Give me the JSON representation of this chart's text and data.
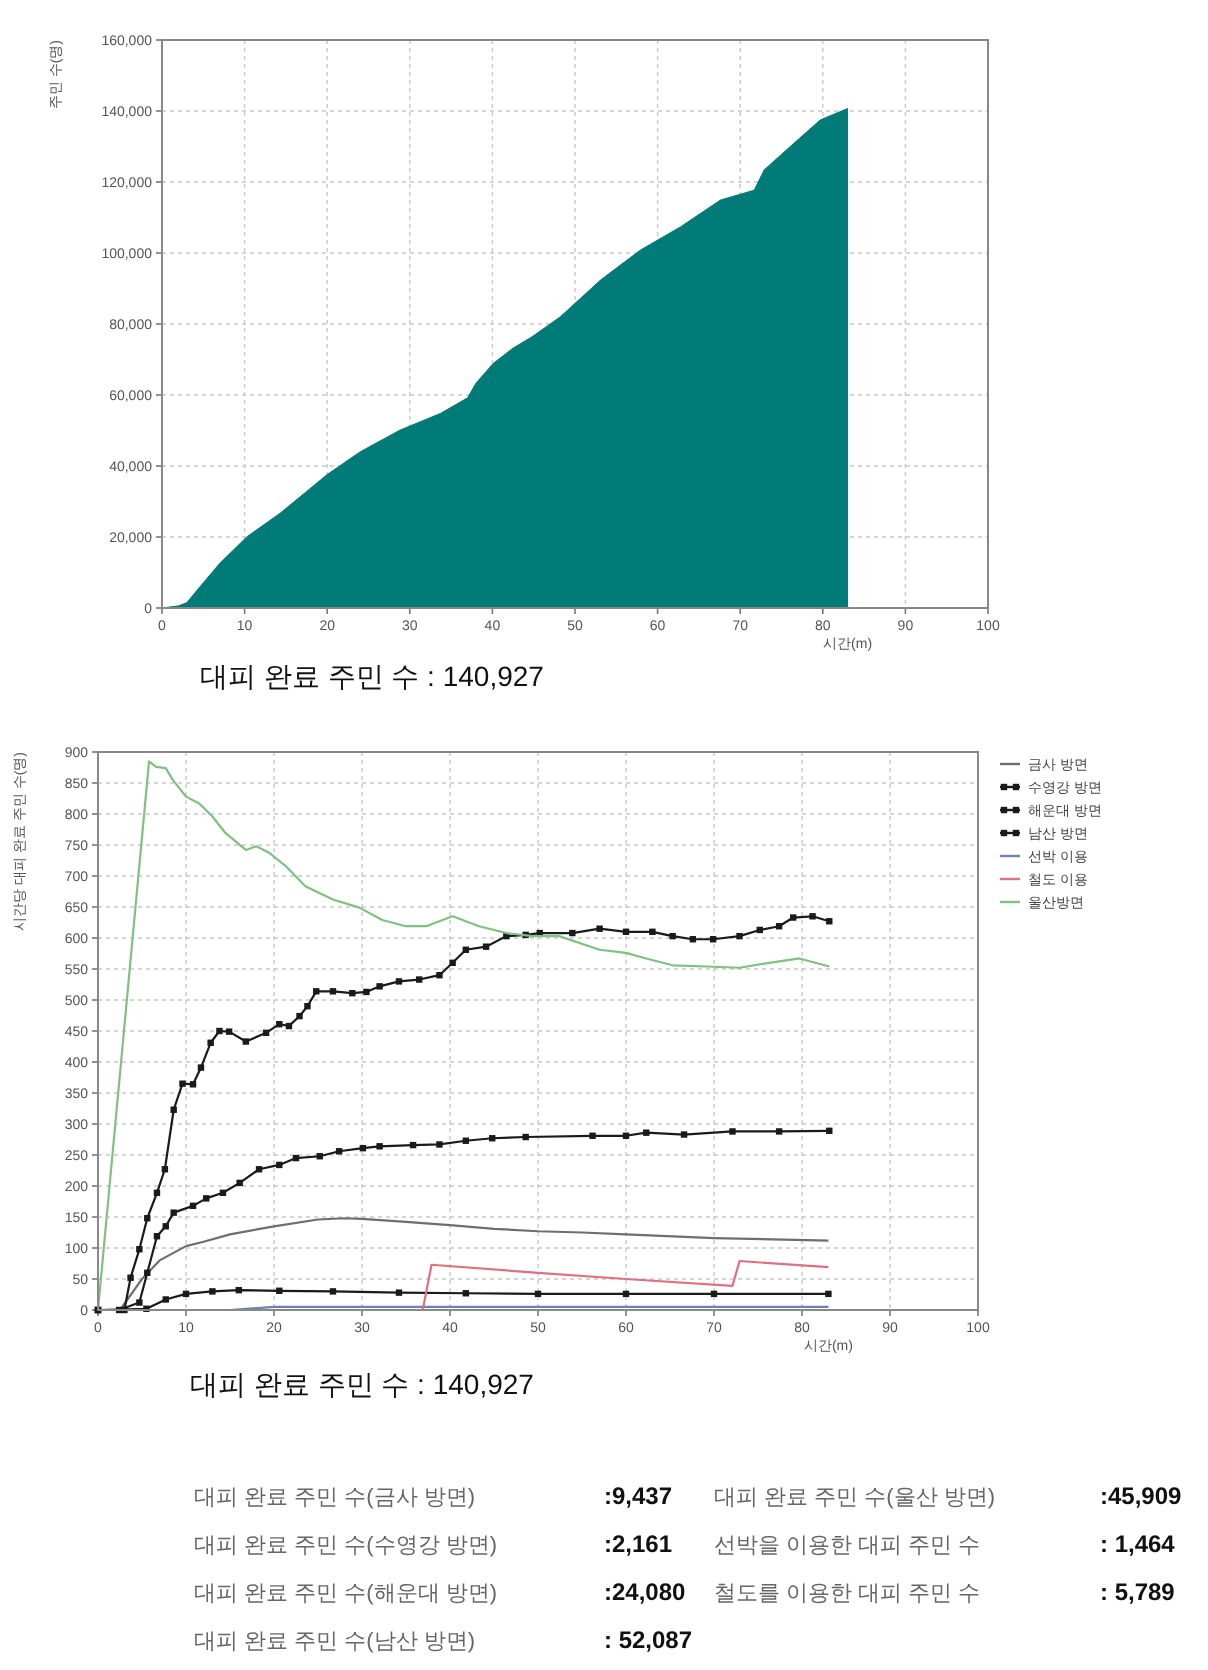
{
  "chart_data": [
    {
      "type": "area",
      "xlabel": "시간(m)",
      "ylabel": "주민 수(명)",
      "xlim": [
        0,
        100
      ],
      "ylim": [
        0,
        160000
      ],
      "xticks": [
        0,
        10,
        20,
        30,
        40,
        50,
        60,
        70,
        80,
        90,
        100
      ],
      "yticks": [
        0,
        {
          "value": 20000,
          "label": "20,000"
        },
        {
          "value": 40000,
          "label": "40,000"
        },
        {
          "value": 60000,
          "label": "60,000"
        },
        {
          "value": 80000,
          "label": "80,000"
        },
        {
          "value": 100000,
          "label": "100,000"
        },
        {
          "value": 120000,
          "label": "120,000"
        },
        {
          "value": 140000,
          "label": "140,000"
        },
        {
          "value": 160000,
          "label": "160,000"
        }
      ],
      "grid": true,
      "legend": false,
      "series": [
        {
          "color": "#007b78",
          "x": [
            0,
            2,
            3,
            4.6,
            7,
            10.3,
            14.3,
            20,
            24,
            28.8,
            33.7,
            37,
            38,
            40.1,
            42.5,
            44.8,
            48.2,
            53.1,
            57.9,
            62.8,
            67.6,
            71.7,
            72.9,
            76.5,
            79.7,
            83
          ],
          "values": [
            0,
            600,
            1500,
            6000,
            12600,
            20100,
            26700,
            37600,
            44000,
            50100,
            54800,
            59200,
            63300,
            68900,
            73200,
            76400,
            82000,
            92400,
            100800,
            107400,
            114900,
            117700,
            123400,
            130900,
            137500,
            140700
          ]
        }
      ],
      "annotations": [
        "대피 완료 주민 수 : 140,927"
      ]
    },
    {
      "type": "line",
      "xlabel": "시간(m)",
      "ylabel": "시간당 대피 완료 주민 수(명)",
      "xlim": [
        0,
        100
      ],
      "ylim": [
        0,
        900
      ],
      "xticks": [
        0,
        10,
        20,
        30,
        40,
        50,
        60,
        70,
        80,
        90,
        100
      ],
      "yticks": [
        0,
        50,
        100,
        150,
        200,
        250,
        300,
        350,
        400,
        450,
        500,
        550,
        600,
        650,
        700,
        750,
        800,
        850,
        900
      ],
      "grid": true,
      "legend": "right",
      "series": [
        {
          "name": "금사 방면",
          "color": "#6e6e6e",
          "x": [
            0,
            2.5,
            4,
            5,
            7,
            10,
            12,
            15,
            20,
            25,
            28,
            30,
            35,
            40,
            45,
            50,
            55,
            60,
            70,
            83
          ],
          "values": [
            0,
            0,
            30,
            50,
            80,
            103,
            110,
            122,
            135,
            146,
            148,
            147,
            142,
            137,
            131,
            127,
            125,
            122,
            116,
            112
          ]
        },
        {
          "name": "수영강 방면",
          "color": "#1a1a1a",
          "marker": "square",
          "x": [
            0,
            5.5,
            7.7,
            10,
            13,
            16,
            20.6,
            26.7,
            34.2,
            41.8,
            50,
            60,
            70,
            83
          ],
          "values": [
            0,
            2,
            17,
            26,
            30,
            32,
            31,
            30,
            28,
            27,
            26,
            26,
            26,
            26
          ]
        },
        {
          "name": "해운대 방면",
          "color": "#1a1a1a",
          "marker": "square",
          "x": [
            0,
            2.4,
            4.7,
            5.6,
            6.7,
            7.7,
            8.6,
            10.8,
            12.3,
            14.2,
            16.1,
            18.3,
            20.6,
            22.5,
            25.2,
            27.4,
            30.1,
            32,
            35.8,
            38.8,
            41.8,
            44.8,
            48.6,
            56.2,
            60,
            62.3,
            66.6,
            72.1,
            77.4,
            83.1
          ],
          "values": [
            0,
            0,
            12,
            60,
            119,
            135,
            157,
            168,
            180,
            189,
            205,
            227,
            234,
            245,
            248,
            256,
            261,
            264,
            266,
            267,
            273,
            277,
            279,
            281,
            281,
            286,
            283,
            288,
            288,
            289
          ]
        },
        {
          "name": "남산 방면",
          "color": "#1a1a1a",
          "marker": "square",
          "x": [
            0,
            3,
            3.7,
            4.7,
            5.6,
            6.7,
            7.6,
            8.6,
            9.6,
            10.8,
            11.7,
            12.8,
            13.8,
            14.9,
            16.8,
            19.1,
            20.6,
            21.7,
            22.9,
            23.8,
            24.8,
            26.7,
            28.9,
            30.5,
            32,
            34.2,
            36.5,
            38.8,
            40.3,
            41.8,
            44.1,
            46.4,
            48.6,
            50.2,
            53.9,
            57,
            60,
            63,
            65.3,
            67.6,
            69.9,
            72.9,
            75.2,
            77.4,
            79,
            81.2,
            83.1
          ],
          "values": [
            0,
            0,
            52,
            98,
            148,
            189,
            227,
            323,
            365,
            364,
            391,
            431,
            450,
            449,
            433,
            447,
            461,
            458,
            474,
            490,
            514,
            514,
            511,
            513,
            522,
            530,
            533,
            540,
            560,
            581,
            586,
            603,
            605,
            608,
            608,
            615,
            610,
            610,
            603,
            598,
            598,
            603,
            613,
            619,
            633,
            635,
            627
          ]
        },
        {
          "name": "선박 이용",
          "color": "#7080b0",
          "x": [
            0,
            15,
            20,
            83
          ],
          "values": [
            0,
            0,
            5,
            5
          ]
        },
        {
          "name": "철도 이용",
          "color": "#e07080",
          "x": [
            36.9,
            37.9,
            50,
            60,
            72.1,
            72.9,
            83
          ],
          "values": [
            0,
            73,
            60,
            50,
            39,
            79,
            69
          ]
        },
        {
          "name": "울산방면",
          "color": "#80c080",
          "x": [
            0,
            5.8,
            6.6,
            7.7,
            8.5,
            10,
            11.5,
            13,
            14.5,
            16.8,
            18,
            19.5,
            21.4,
            23.6,
            26.7,
            29.7,
            32.3,
            35,
            37.3,
            40.3,
            43.3,
            46.4,
            49.4,
            52.4,
            57,
            60,
            62.3,
            65.3,
            69.1,
            72.9,
            75.9,
            79.7,
            83.1
          ],
          "values": [
            0,
            885,
            876,
            874,
            855,
            828,
            817,
            796,
            769,
            742,
            748,
            737,
            715,
            683,
            662,
            649,
            629,
            619,
            619,
            635,
            619,
            608,
            603,
            603,
            581,
            576,
            567,
            556,
            554,
            552,
            559,
            567,
            554
          ]
        }
      ],
      "annotations": [
        "대피 완료 주민 수 : 140,927"
      ]
    },
    {
      "type": "other",
      "annotations": [
        "대피 완료 주민 수(금사 방면)",
        ":9,437",
        "대피 완료 주민 수(울산 방면)",
        ":45,909",
        "대피 완료 주민 수(수영강 방면)",
        ":2,161",
        "선박을 이용한 대피 주민 수",
        ": 1,464",
        "대피 완료 주민 수(해운대 방면)",
        ":24,080",
        "철도를 이용한 대피 주민 수",
        ": 5,789",
        "대피 완료 주민 수(남산 방면)",
        ": 52,087"
      ]
    }
  ]
}
